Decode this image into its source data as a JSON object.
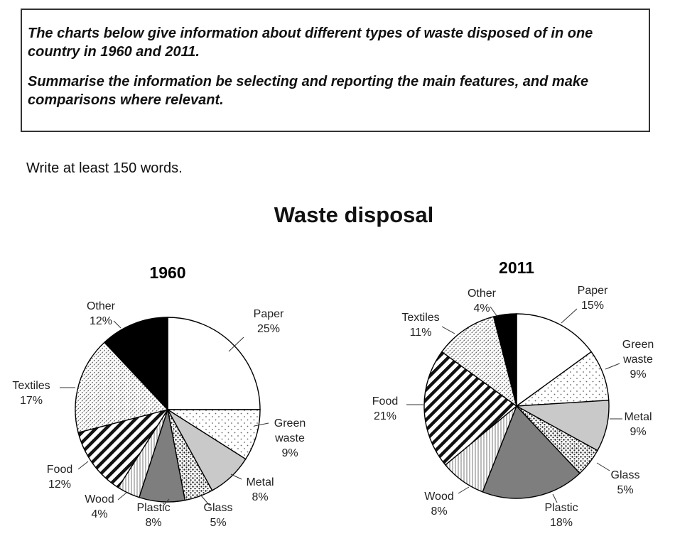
{
  "task": {
    "line1": "The charts below give information about different types of waste disposed of in one country in 1960 and 2011.",
    "line2": "Summarise the information be selecting and reporting the main features, and make comparisons where relevant."
  },
  "instruction": "Write at least 150 words.",
  "chart_data": {
    "title": "Waste disposal",
    "charts": [
      {
        "type": "pie",
        "year": "1960",
        "slices": [
          {
            "label": [
              "Paper"
            ],
            "percent_label": "25%",
            "value": 25,
            "fill": "white"
          },
          {
            "label": [
              "Green",
              "waste"
            ],
            "percent_label": "9%",
            "value": 9,
            "fill": "dots"
          },
          {
            "label": [
              "Metal"
            ],
            "percent_label": "8%",
            "value": 8,
            "fill": "lightgray"
          },
          {
            "label": [
              "Glass"
            ],
            "percent_label": "5%",
            "value": 5,
            "fill": "speckle"
          },
          {
            "label": [
              "Plastic"
            ],
            "percent_label": "8%",
            "value": 8,
            "fill": "darkgray"
          },
          {
            "label": [
              "Wood"
            ],
            "percent_label": "4%",
            "value": 4,
            "fill": "vlines"
          },
          {
            "label": [
              "Food"
            ],
            "percent_label": "12%",
            "value": 12,
            "fill": "diagonal-heavy"
          },
          {
            "label": [
              "Textiles"
            ],
            "percent_label": "17%",
            "value": 17,
            "fill": "diagonal-light"
          },
          {
            "label": [
              "Other"
            ],
            "percent_label": "12%",
            "value": 12,
            "fill": "black"
          }
        ]
      },
      {
        "type": "pie",
        "year": "2011",
        "slices": [
          {
            "label": [
              "Paper"
            ],
            "percent_label": "15%",
            "value": 15,
            "fill": "white"
          },
          {
            "label": [
              "Green",
              "waste"
            ],
            "percent_label": "9%",
            "value": 9,
            "fill": "dots"
          },
          {
            "label": [
              "Metal"
            ],
            "percent_label": "9%",
            "value": 9,
            "fill": "lightgray"
          },
          {
            "label": [
              "Glass"
            ],
            "percent_label": "5%",
            "value": 5,
            "fill": "speckle"
          },
          {
            "label": [
              "Plastic"
            ],
            "percent_label": "18%",
            "value": 18,
            "fill": "darkgray"
          },
          {
            "label": [
              "Wood"
            ],
            "percent_label": "8%",
            "value": 8,
            "fill": "vlines"
          },
          {
            "label": [
              "Food"
            ],
            "percent_label": "21%",
            "value": 21,
            "fill": "diagonal-heavy"
          },
          {
            "label": [
              "Textiles"
            ],
            "percent_label": "11%",
            "value": 11,
            "fill": "diagonal-light"
          },
          {
            "label": [
              "Other"
            ],
            "percent_label": "4%",
            "value": 4,
            "fill": "black"
          }
        ]
      }
    ]
  }
}
